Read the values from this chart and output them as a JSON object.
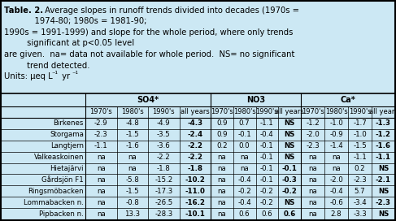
{
  "background_color": "#cce8f4",
  "row_labels": [
    "Birkenes",
    "Storgama",
    "Langtjern",
    "Valkeaskoinen",
    "Hietajärvi",
    "Gårdsjön F1",
    "Ringsmöbacken",
    "Lommabacken n.",
    "Pipbacken n."
  ],
  "col_subheaders": [
    "1970's",
    "1980's",
    "1990's",
    "all years"
  ],
  "so4_data": [
    [
      "-2.9",
      "-4.8",
      "-4.9",
      "-4.3"
    ],
    [
      "-2.3",
      "-1.5",
      "-3.5",
      "-2.4"
    ],
    [
      "-1.1",
      "-1.6",
      "-3.6",
      "-2.2"
    ],
    [
      "na",
      "na",
      "-2.2",
      "-2.2"
    ],
    [
      "na",
      "na",
      "-1.8",
      "-1.8"
    ],
    [
      "na",
      "-5.8",
      "-15.2",
      "-10.2"
    ],
    [
      "na",
      "-1.5",
      "-17.3",
      "-11.0"
    ],
    [
      "na",
      "-0.8",
      "-26.5",
      "-16.2"
    ],
    [
      "na",
      "13.3",
      "-28.3",
      "-10.1"
    ]
  ],
  "no3_data": [
    [
      "0.9",
      "0.7",
      "-1.1",
      "NS"
    ],
    [
      "0.9",
      "-0.1",
      "-0.4",
      "NS"
    ],
    [
      "0.2",
      "0.0",
      "-0.1",
      "NS"
    ],
    [
      "na",
      "na",
      "-0.1",
      "NS"
    ],
    [
      "na",
      "na",
      "-0.1",
      "-0.1"
    ],
    [
      "na",
      "-0.4",
      "-0.1",
      "-0.3"
    ],
    [
      "na",
      "-0.2",
      "-0.2",
      "-0.2"
    ],
    [
      "na",
      "-0.4",
      "-0.2",
      "NS"
    ],
    [
      "na",
      "0.6",
      "0.6",
      "0.6"
    ]
  ],
  "ca_data": [
    [
      "-1.2",
      "-1.0",
      "-1.7",
      "-1.3"
    ],
    [
      "-2.0",
      "-0.9",
      "-1.0",
      "-1.2"
    ],
    [
      "-2.3",
      "-1.4",
      "-1.5",
      "-1.6"
    ],
    [
      "na",
      "na",
      "-1.1",
      "-1.1"
    ],
    [
      "na",
      "na",
      "0.2",
      "NS"
    ],
    [
      "na",
      "-2.0",
      "-2.3",
      "-2.1"
    ],
    [
      "na",
      "-0.4",
      "5.7",
      "NS"
    ],
    [
      "na",
      "-0.6",
      "-3.4",
      "-2.3"
    ],
    [
      "na",
      "2.8",
      "-3.3",
      "NS"
    ]
  ]
}
